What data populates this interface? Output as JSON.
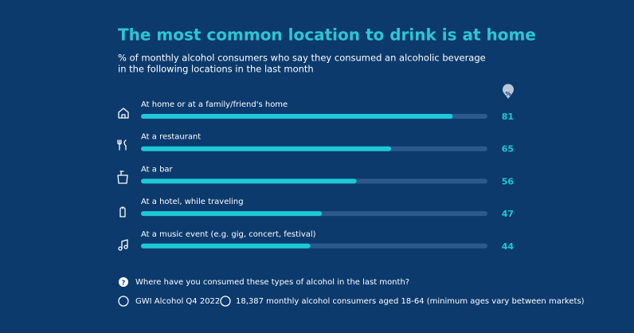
{
  "chart_data": {
    "type": "bar",
    "orientation": "horizontal",
    "title": "The most common location to drink is at home",
    "subtitle": [
      "% of monthly alcohol consumers who say they consumed an alcoholic beverage",
      "in the following locations in the last month"
    ],
    "unit_label": "%",
    "categories": [
      "At home or at a family/friend's home",
      "At a restaurant",
      "At a bar",
      "At a hotel, while traveling",
      "At a music event (e.g. gig, concert, festival)"
    ],
    "values": [
      81,
      65,
      56,
      47,
      44
    ],
    "color": "#1ec8d8",
    "track_color": "#2c5a8c",
    "title_color": "#2bc6d6",
    "xlim": [
      0,
      90
    ],
    "question": "Where have you consumed these types of alcohol in the last month?",
    "source": "GWI Alcohol Q4 2022",
    "sample": "18,387 monthly alcohol consumers aged 18-64 (minimum ages vary between markets)"
  }
}
